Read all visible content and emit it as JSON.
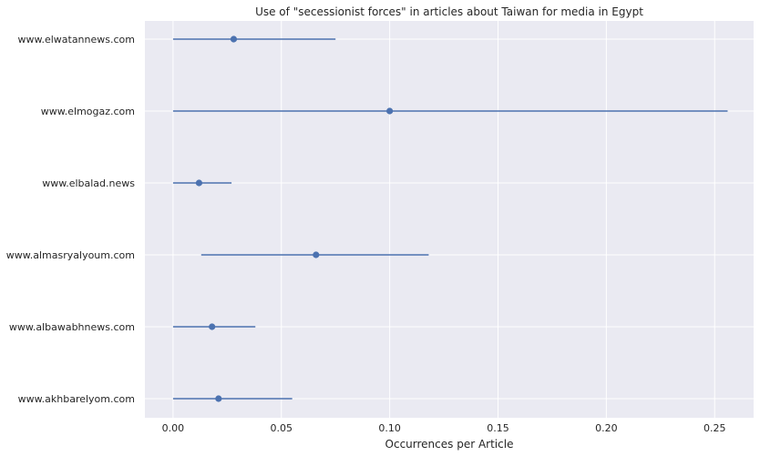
{
  "chart_data": {
    "type": "scatter",
    "title": "Use of \"secessionist forces\" in articles about Taiwan for media in Egypt",
    "xlabel": "Occurrences per Article",
    "ylabel": "",
    "xlim": [
      -0.013,
      0.268
    ],
    "xticks": [
      0.0,
      0.05,
      0.1,
      0.15,
      0.2,
      0.25
    ],
    "xtick_labels": [
      "0.00",
      "0.05",
      "0.10",
      "0.15",
      "0.20",
      "0.25"
    ],
    "grid": true,
    "categories": [
      "www.elwatannews.com",
      "www.elmogaz.com",
      "www.elbalad.news",
      "www.almasryalyoum.com",
      "www.albawabhnews.com",
      "www.akhbarelyom.com"
    ],
    "values": [
      0.028,
      0.1,
      0.012,
      0.066,
      0.018,
      0.021
    ],
    "error_low": [
      0.0,
      0.0,
      0.0,
      0.013,
      0.0,
      0.0
    ],
    "error_high": [
      0.075,
      0.256,
      0.027,
      0.118,
      0.038,
      0.055
    ],
    "colors": {
      "series": "#4c72b0",
      "plot_background": "#eaeaf2",
      "grid": "#ffffff"
    }
  }
}
